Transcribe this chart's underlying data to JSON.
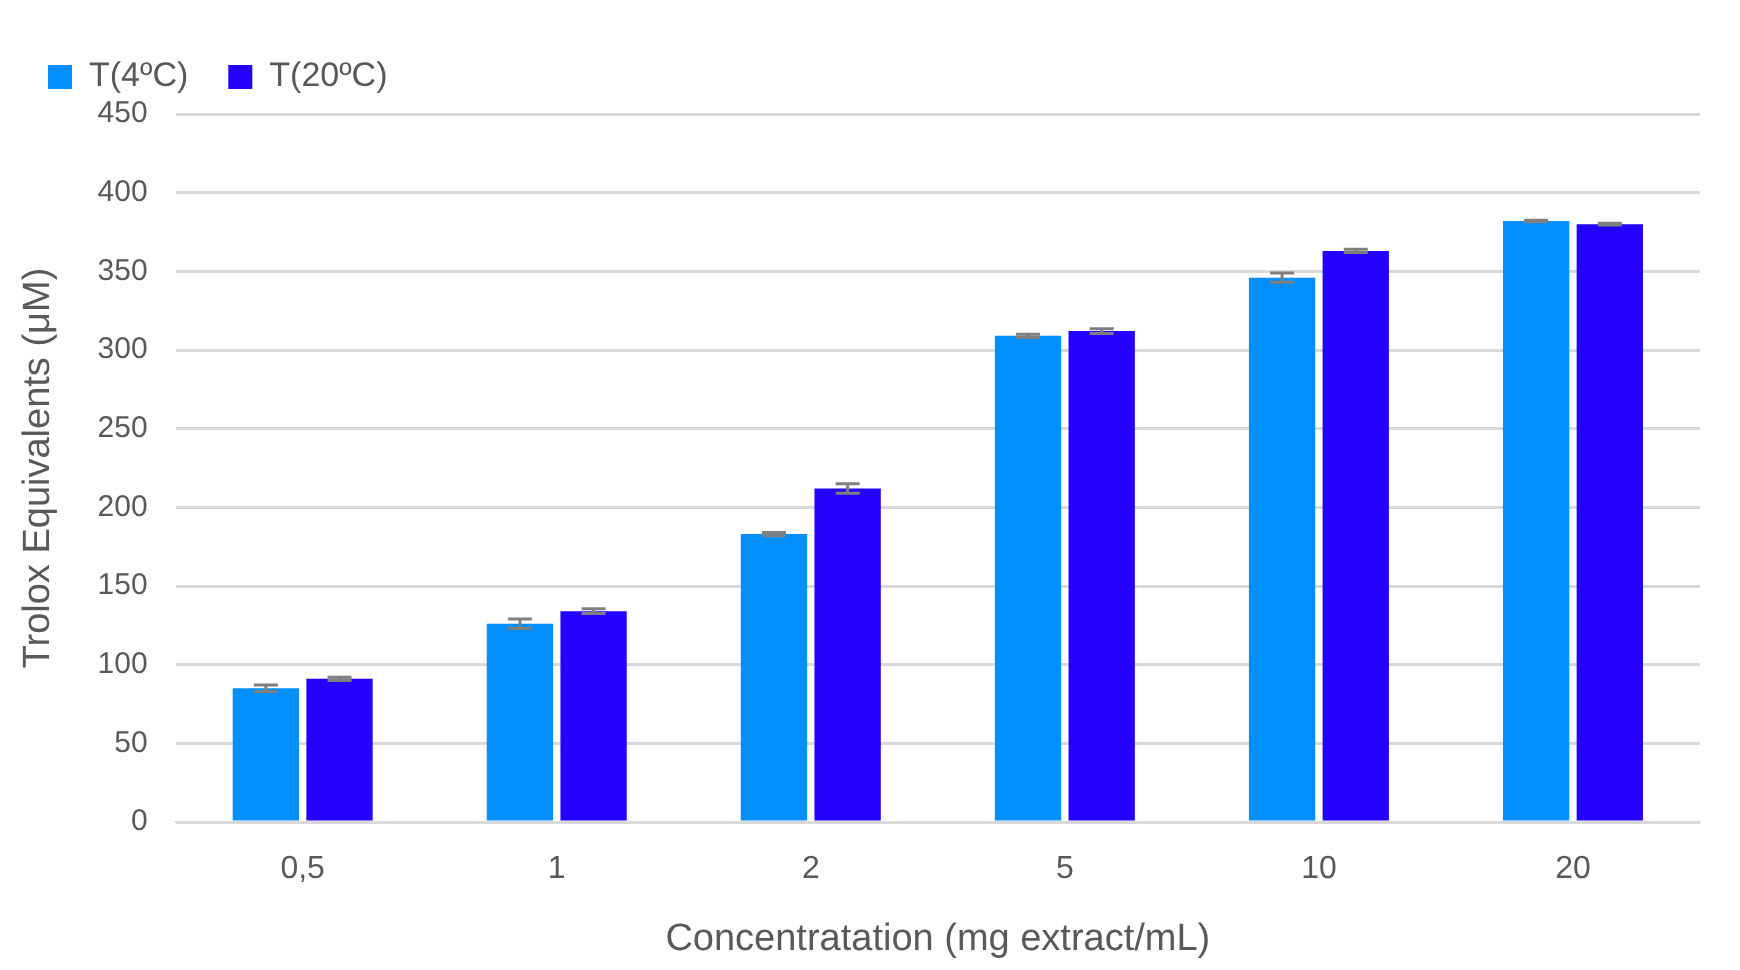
{
  "chart_data": {
    "type": "bar",
    "xlabel": "Concentratation (mg extract/mL)",
    "ylabel": "Trolox Equivalents (μM)",
    "categories": [
      "0,5",
      "1",
      "2",
      "5",
      "10",
      "20"
    ],
    "series": [
      {
        "name": "T(4ºC)",
        "color": "#008ffe",
        "values": [
          85,
          126,
          183,
          309,
          346,
          382
        ],
        "errors": [
          2,
          3,
          1,
          1,
          3,
          0.5
        ]
      },
      {
        "name": "T(20ºC)",
        "color": "#2400fe",
        "values": [
          91,
          134,
          212,
          312,
          363,
          380
        ],
        "errors": [
          1,
          1.5,
          3,
          1.5,
          1,
          0.5
        ]
      }
    ],
    "ylim": [
      0,
      450
    ],
    "yticks": [
      0,
      50,
      100,
      150,
      200,
      250,
      300,
      350,
      400,
      450
    ],
    "grid": "y",
    "legend": "top left"
  }
}
